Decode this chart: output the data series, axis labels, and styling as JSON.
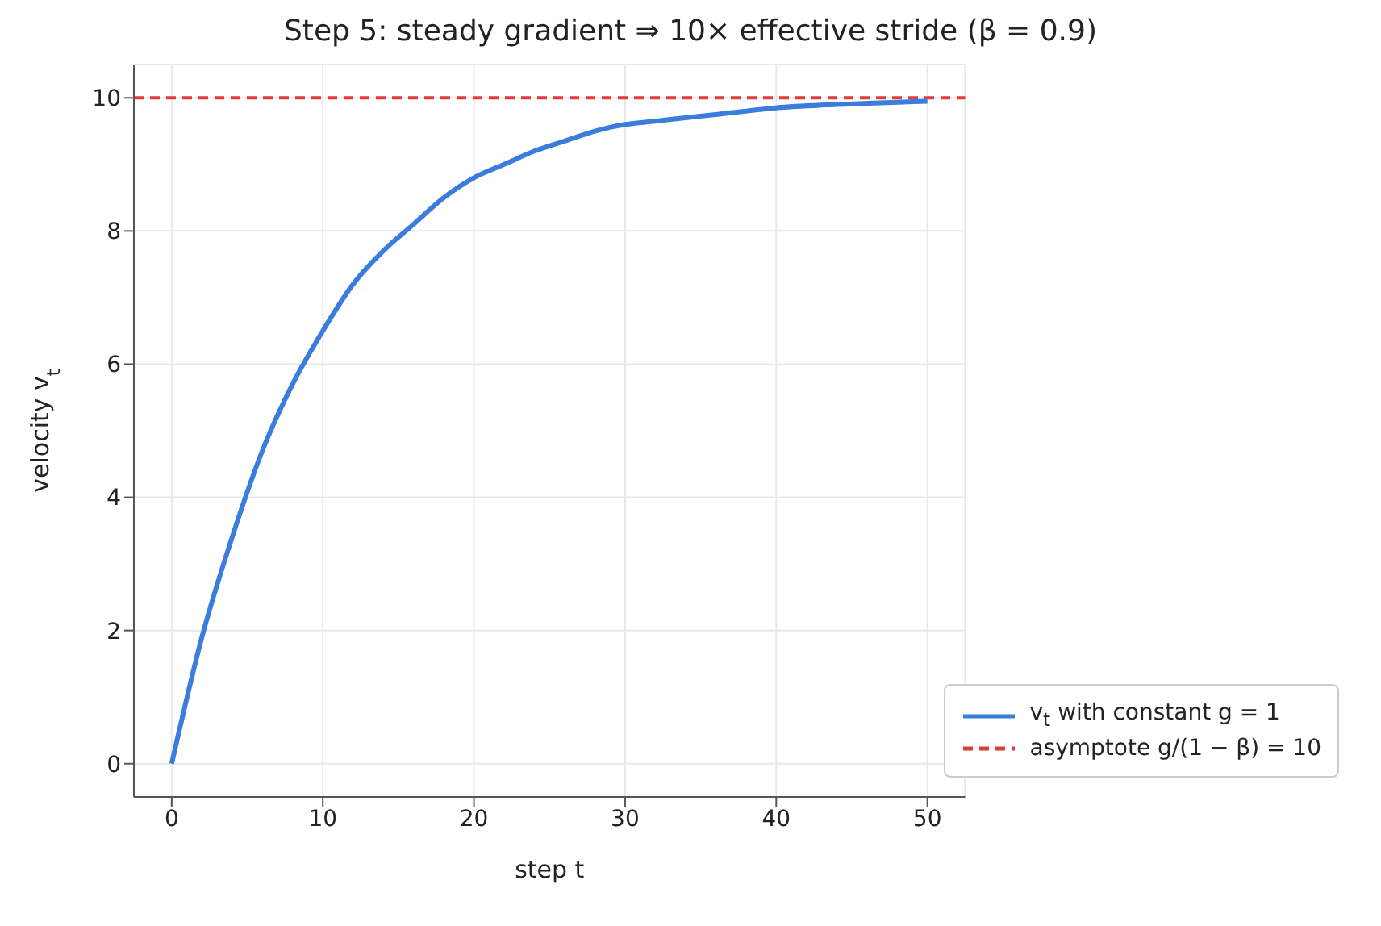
{
  "chart_data": {
    "type": "line",
    "title": "Step 5: steady gradient ⇒ 10× effective stride (β = 0.9)",
    "xlabel": "step t",
    "ylabel": "velocity v$_{t}$",
    "x": [
      0,
      2,
      4,
      6,
      8,
      10,
      12,
      14,
      16,
      18,
      20,
      22,
      24,
      26,
      28,
      30,
      32,
      34,
      36,
      38,
      40,
      44,
      50
    ],
    "series": [
      {
        "name": "v$_{t}$ with constant g = 1",
        "color": "#3b7ddd",
        "values": [
          0,
          1.9,
          3.4,
          4.7,
          5.7,
          6.5,
          7.2,
          7.7,
          8.1,
          8.5,
          8.8,
          9.0,
          9.2,
          9.35,
          9.5,
          9.6,
          9.65,
          9.7,
          9.75,
          9.8,
          9.85,
          9.9,
          9.95
        ]
      }
    ],
    "ref_lines": [
      {
        "axis": "y",
        "value": 10,
        "label": "asymptote g/(1 − β) = 10",
        "color": "#e03c3c",
        "line_style": "dashed"
      }
    ],
    "xlim": [
      -2.5,
      52.5
    ],
    "ylim": [
      -0.5,
      10.5
    ],
    "xticks": [
      0,
      10,
      20,
      30,
      40,
      50
    ],
    "yticks": [
      0,
      2,
      4,
      6,
      8,
      10
    ],
    "grid": true,
    "legend": "bottom right",
    "marker": "none",
    "line_style": "solid"
  }
}
